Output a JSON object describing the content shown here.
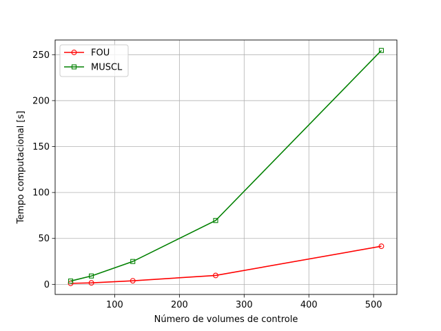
{
  "chart_data": {
    "type": "line",
    "xlabel": "Número de volumes de controle",
    "ylabel": "Tempo computacional [s]",
    "xlim": [
      8,
      536
    ],
    "ylim": [
      -11,
      266
    ],
    "xticks": [
      100,
      200,
      300,
      400,
      500
    ],
    "yticks": [
      0,
      50,
      100,
      150,
      200,
      250
    ],
    "grid": true,
    "legend_position": "top-left",
    "series": [
      {
        "name": "FOU",
        "color": "#ff0000",
        "marker": "circle",
        "x": [
          32,
          64,
          128,
          256,
          512
        ],
        "y": [
          1.1,
          1.6,
          3.9,
          9.7,
          41.5
        ]
      },
      {
        "name": "MUSCL",
        "color": "#008000",
        "marker": "square",
        "x": [
          32,
          64,
          128,
          256,
          512
        ],
        "y": [
          3.6,
          9.1,
          24.9,
          69.5,
          254.6
        ]
      }
    ]
  }
}
